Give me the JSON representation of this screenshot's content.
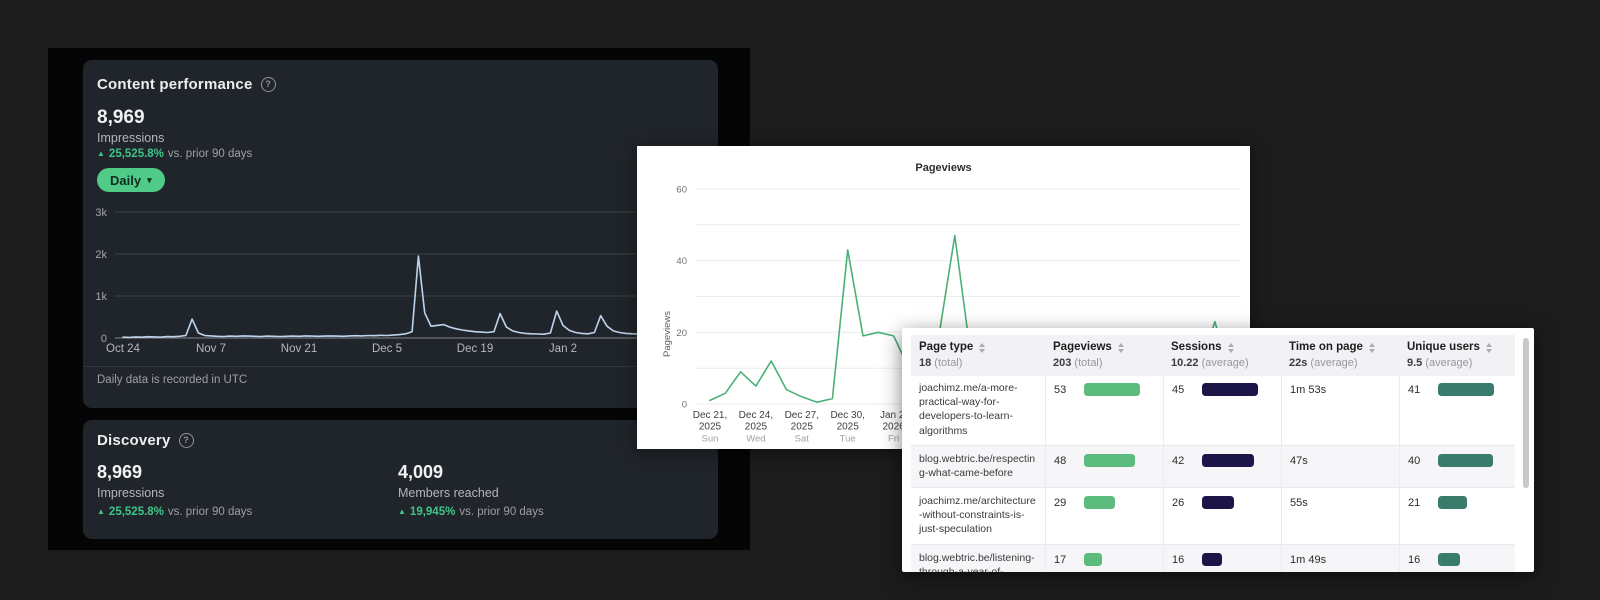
{
  "icons": {
    "help": "?",
    "caret_down": "▾",
    "trend_up": "▲"
  },
  "left_panel": {
    "content_performance": {
      "title": "Content performance",
      "metric_value": "8,969",
      "metric_label": "Impressions",
      "trend_value": "25,525.8%",
      "trend_suffix": "vs. prior 90 days",
      "range_button_label": "Daily",
      "footnote": "Daily data is recorded in UTC"
    },
    "discovery": {
      "title": "Discovery",
      "stats": [
        {
          "value": "8,969",
          "label": "Impressions",
          "trend_value": "25,525.8%",
          "trend_suffix": "vs. prior 90 days"
        },
        {
          "value": "4,009",
          "label": "Members reached",
          "trend_value": "19,945%",
          "trend_suffix": "vs. prior 90 days"
        }
      ]
    }
  },
  "chart_data": [
    {
      "type": "line",
      "title": "",
      "ylabel": "",
      "color": "#bed3ec",
      "ylim": [
        0,
        3000
      ],
      "y_tick_labels": [
        "3k",
        "2k",
        "1k",
        "0"
      ],
      "x_tick_labels": [
        "Oct 24",
        "Nov 7",
        "Nov 21",
        "Dec 5",
        "Dec 19",
        "Jan 2"
      ],
      "x_tick_interval_days": 14,
      "grid": true,
      "values": [
        20,
        15,
        25,
        20,
        30,
        25,
        20,
        35,
        30,
        40,
        60,
        450,
        120,
        60,
        50,
        40,
        35,
        45,
        40,
        50,
        45,
        40,
        35,
        45,
        40,
        35,
        40,
        45,
        40,
        50,
        45,
        40,
        45,
        50,
        45,
        40,
        50,
        55,
        50,
        60,
        55,
        65,
        60,
        70,
        80,
        100,
        150,
        1950,
        600,
        280,
        300,
        320,
        260,
        220,
        190,
        170,
        150,
        140,
        130,
        150,
        580,
        260,
        170,
        130,
        110,
        100,
        95,
        90,
        120,
        640,
        300,
        180,
        130,
        110,
        100,
        130,
        530,
        280,
        170,
        130,
        110,
        100,
        95,
        90,
        85,
        90,
        95,
        100,
        90,
        85,
        95,
        110,
        105,
        100
      ]
    },
    {
      "type": "line",
      "title": "Pageviews",
      "ylabel": "Pageviews",
      "color": "#4cb078",
      "ylim": [
        0,
        60
      ],
      "y_tick_labels_every": 20,
      "grid_step": 10,
      "x_ticks": [
        {
          "date": "Dec 21,",
          "year": "2025",
          "weekday": "Sun"
        },
        {
          "date": "Dec 24,",
          "year": "2025",
          "weekday": "Wed"
        },
        {
          "date": "Dec 27,",
          "year": "2025",
          "weekday": "Sat"
        },
        {
          "date": "Dec 30,",
          "year": "2025",
          "weekday": "Tue"
        },
        {
          "date": "Jan 2,",
          "year": "2026",
          "weekday": "Fri"
        }
      ],
      "x_tick_interval_days": 3,
      "values": [
        1,
        3,
        9,
        5,
        12,
        4,
        2,
        0.5,
        1.5,
        43,
        19,
        20,
        19,
        10,
        6,
        20,
        47,
        15,
        8,
        5,
        4,
        3,
        6,
        4,
        5,
        8,
        6,
        4,
        7,
        5,
        9,
        6,
        10,
        23,
        8
      ]
    }
  ],
  "table": {
    "columns": [
      {
        "label": "Page type",
        "summary": "18",
        "unit": "(total)"
      },
      {
        "label": "Pageviews",
        "summary": "203",
        "unit": "(total)"
      },
      {
        "label": "Sessions",
        "summary": "10.22",
        "unit": "(average)"
      },
      {
        "label": "Time on page",
        "summary": "22s",
        "unit": "(average)"
      },
      {
        "label": "Unique users",
        "summary": "9.5",
        "unit": "(average)"
      }
    ],
    "rows": [
      {
        "page": "joachimz.me/a-more-practical-way-for-developers-to-learn-algorithms",
        "pageviews": 53,
        "sessions": 45,
        "time_on_page": "1m 53s",
        "unique_users": 41
      },
      {
        "page": "blog.webtric.be/respecting-what-came-before",
        "pageviews": 48,
        "sessions": 42,
        "time_on_page": "47s",
        "unique_users": 40
      },
      {
        "page": "joachimz.me/architecture-without-constraints-is-just-speculation",
        "pageviews": 29,
        "sessions": 26,
        "time_on_page": "55s",
        "unique_users": 21
      },
      {
        "page": "blog.webtric.be/listening-through-a-year-of-change",
        "pageviews": 17,
        "sessions": 16,
        "time_on_page": "1m 49s",
        "unique_users": 16
      }
    ],
    "bar_colors": {
      "pageviews": "#5bbc7e",
      "sessions": "#1c1547",
      "unique_users": "#3a7c6b"
    }
  }
}
